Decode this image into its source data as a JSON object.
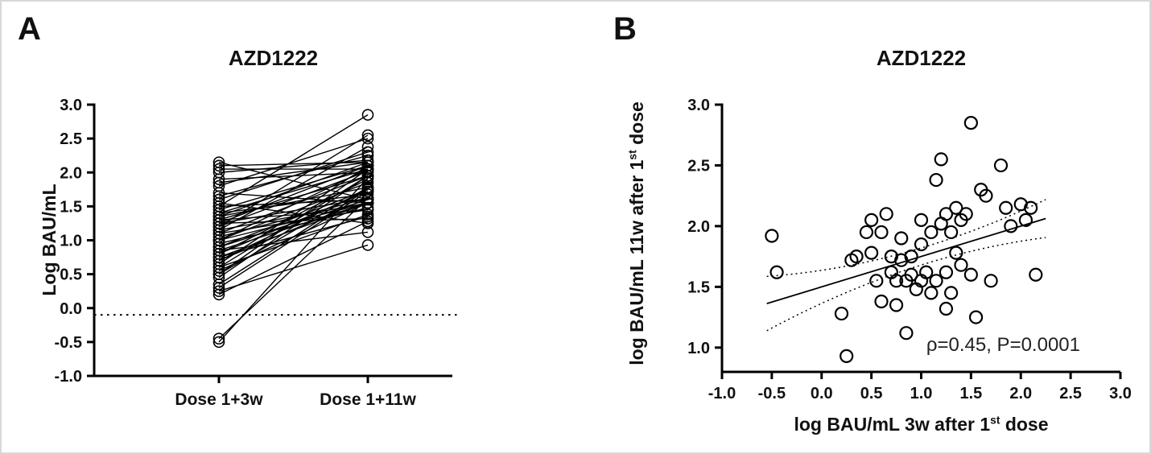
{
  "figure": {
    "background_color": "#ffffff",
    "foreground_color": "#000000",
    "panels": {
      "a": {
        "letter": "A",
        "title": "AZD1222",
        "ylabel": "Log BAU/mL",
        "categories": [
          "Dose 1+3w",
          "Dose 1+11w"
        ]
      },
      "b": {
        "letter": "B",
        "title": "AZD1222",
        "xlabel_pre": "log BAU/mL 3w after 1",
        "xlabel_sup": "st",
        "xlabel_post": " dose",
        "ylabel_pre": "log BAU/mL 11w after 1",
        "ylabel_sup": "st",
        "ylabel_post": " dose",
        "annotation": "ρ=0.45, P=0.0001"
      }
    }
  },
  "chart_data": [
    {
      "type": "line",
      "subtype": "paired-before-after",
      "title": "AZD1222",
      "ylabel": "Log BAU/mL",
      "categories": [
        "Dose 1+3w",
        "Dose 1+11w"
      ],
      "ylim": [
        -1.0,
        3.0
      ],
      "yticks": [
        3.0,
        2.5,
        2.0,
        1.5,
        1.0,
        0.5,
        0.0,
        -0.5,
        -1.0
      ],
      "grid": false,
      "threshold_line": {
        "y": -0.1,
        "style": "dotted"
      },
      "marker": "open-circle",
      "pairs": [
        [
          -0.5,
          1.92
        ],
        [
          -0.45,
          1.62
        ],
        [
          0.2,
          1.28
        ],
        [
          0.25,
          0.93
        ],
        [
          0.3,
          1.72
        ],
        [
          0.35,
          1.75
        ],
        [
          0.45,
          1.95
        ],
        [
          0.5,
          2.05
        ],
        [
          0.5,
          1.78
        ],
        [
          0.55,
          1.55
        ],
        [
          0.6,
          1.95
        ],
        [
          0.6,
          1.38
        ],
        [
          0.65,
          2.1
        ],
        [
          0.7,
          1.75
        ],
        [
          0.7,
          1.62
        ],
        [
          0.75,
          1.55
        ],
        [
          0.75,
          1.35
        ],
        [
          0.8,
          1.9
        ],
        [
          0.8,
          1.72
        ],
        [
          0.85,
          1.55
        ],
        [
          0.85,
          1.12
        ],
        [
          0.9,
          1.75
        ],
        [
          0.9,
          1.6
        ],
        [
          0.95,
          1.48
        ],
        [
          1.0,
          2.05
        ],
        [
          1.0,
          1.85
        ],
        [
          1.0,
          1.55
        ],
        [
          1.05,
          1.62
        ],
        [
          1.1,
          1.95
        ],
        [
          1.1,
          1.45
        ],
        [
          1.15,
          2.38
        ],
        [
          1.15,
          1.55
        ],
        [
          1.2,
          2.55
        ],
        [
          1.2,
          2.02
        ],
        [
          1.25,
          2.1
        ],
        [
          1.25,
          1.62
        ],
        [
          1.25,
          1.32
        ],
        [
          1.3,
          1.95
        ],
        [
          1.3,
          1.45
        ],
        [
          1.35,
          2.15
        ],
        [
          1.35,
          1.78
        ],
        [
          1.4,
          2.05
        ],
        [
          1.4,
          1.68
        ],
        [
          1.45,
          2.1
        ],
        [
          1.5,
          2.85
        ],
        [
          1.5,
          1.6
        ],
        [
          1.55,
          1.25
        ],
        [
          1.6,
          2.3
        ],
        [
          1.65,
          2.25
        ],
        [
          1.7,
          1.55
        ],
        [
          1.8,
          2.5
        ],
        [
          1.85,
          2.15
        ],
        [
          1.9,
          2.0
        ],
        [
          2.0,
          2.18
        ],
        [
          2.05,
          2.05
        ],
        [
          2.1,
          2.15
        ],
        [
          2.15,
          1.6
        ]
      ]
    },
    {
      "type": "scatter",
      "title": "AZD1222",
      "xlabel": "log BAU/mL 3w after 1st dose",
      "ylabel": "log BAU/mL 11w after 1st dose",
      "xlim": [
        -1.0,
        3.0
      ],
      "ylim": [
        0.8,
        3.0
      ],
      "xticks": [
        -1.0,
        -0.5,
        0.0,
        0.5,
        1.0,
        1.5,
        2.0,
        2.5,
        3.0
      ],
      "yticks": [
        1.0,
        1.5,
        2.0,
        2.5,
        3.0
      ],
      "grid": false,
      "marker": "open-circle",
      "points": [
        [
          -0.5,
          1.92
        ],
        [
          -0.45,
          1.62
        ],
        [
          0.2,
          1.28
        ],
        [
          0.25,
          0.93
        ],
        [
          0.3,
          1.72
        ],
        [
          0.35,
          1.75
        ],
        [
          0.45,
          1.95
        ],
        [
          0.5,
          2.05
        ],
        [
          0.5,
          1.78
        ],
        [
          0.55,
          1.55
        ],
        [
          0.6,
          1.95
        ],
        [
          0.6,
          1.38
        ],
        [
          0.65,
          2.1
        ],
        [
          0.7,
          1.75
        ],
        [
          0.7,
          1.62
        ],
        [
          0.75,
          1.55
        ],
        [
          0.75,
          1.35
        ],
        [
          0.8,
          1.9
        ],
        [
          0.8,
          1.72
        ],
        [
          0.85,
          1.55
        ],
        [
          0.85,
          1.12
        ],
        [
          0.9,
          1.75
        ],
        [
          0.9,
          1.6
        ],
        [
          0.95,
          1.48
        ],
        [
          1.0,
          2.05
        ],
        [
          1.0,
          1.85
        ],
        [
          1.0,
          1.55
        ],
        [
          1.05,
          1.62
        ],
        [
          1.1,
          1.95
        ],
        [
          1.1,
          1.45
        ],
        [
          1.15,
          2.38
        ],
        [
          1.15,
          1.55
        ],
        [
          1.2,
          2.55
        ],
        [
          1.2,
          2.02
        ],
        [
          1.25,
          2.1
        ],
        [
          1.25,
          1.62
        ],
        [
          1.25,
          1.32
        ],
        [
          1.3,
          1.95
        ],
        [
          1.3,
          1.45
        ],
        [
          1.35,
          2.15
        ],
        [
          1.35,
          1.78
        ],
        [
          1.4,
          2.05
        ],
        [
          1.4,
          1.68
        ],
        [
          1.45,
          2.1
        ],
        [
          1.5,
          2.85
        ],
        [
          1.5,
          1.6
        ],
        [
          1.55,
          1.25
        ],
        [
          1.6,
          2.3
        ],
        [
          1.65,
          2.25
        ],
        [
          1.7,
          1.55
        ],
        [
          1.8,
          2.5
        ],
        [
          1.85,
          2.15
        ],
        [
          1.9,
          2.0
        ],
        [
          2.0,
          2.18
        ],
        [
          2.05,
          2.05
        ],
        [
          2.1,
          2.15
        ],
        [
          2.15,
          1.6
        ]
      ],
      "regression_line": {
        "slope": 0.25,
        "intercept": 1.5,
        "x_start": -0.55,
        "x_end": 2.25,
        "style": "solid"
      },
      "confidence_band": {
        "style": "dotted",
        "half_width_at_center": 0.07,
        "curvature": 0.06,
        "center_x": 1.05
      },
      "annotation": "ρ=0.45, P=0.0001",
      "correlation_rho": 0.45,
      "p_value": 0.0001,
      "legend": null
    }
  ]
}
